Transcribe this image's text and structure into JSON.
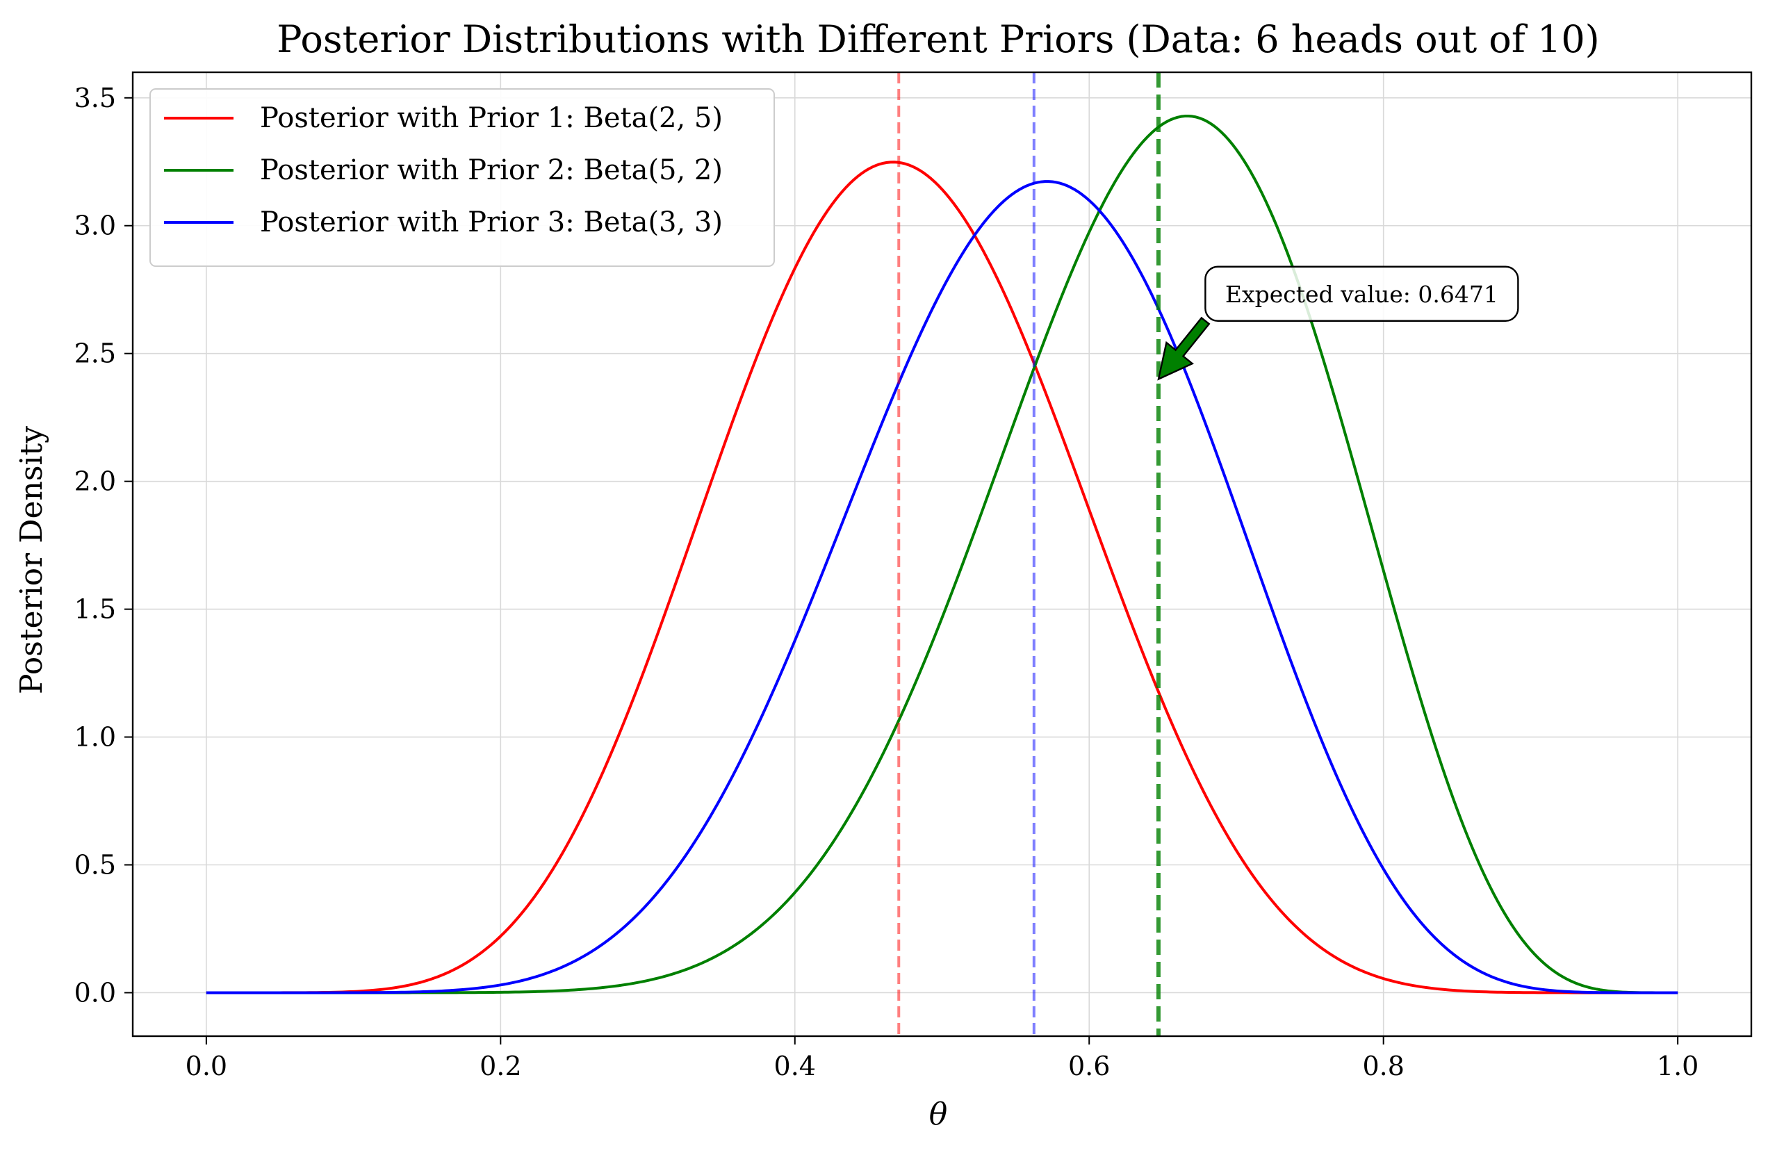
{
  "chart_data": {
    "type": "line",
    "title": "Posterior Distributions with Different Priors (Data: 6 heads out of 10)",
    "xlabel": "θ",
    "ylabel": "Posterior Density",
    "xlim": [
      -0.05,
      1.05
    ],
    "ylim": [
      -0.17,
      3.6
    ],
    "xticks": [
      "0.0",
      "0.2",
      "0.4",
      "0.6",
      "0.8",
      "1.0"
    ],
    "yticks": [
      "0.0",
      "0.5",
      "1.0",
      "1.5",
      "2.0",
      "2.5",
      "3.0",
      "3.5"
    ],
    "grid": true,
    "legend_position": "top-left",
    "series": [
      {
        "name": "Posterior with Prior 1: Beta(2, 5)",
        "color": "#ff0000",
        "alpha": 8,
        "beta": 9
      },
      {
        "name": "Posterior with Prior 2: Beta(5, 2)",
        "color": "#008000",
        "alpha": 11,
        "beta": 6
      },
      {
        "name": "Posterior with Prior 3: Beta(3, 3)",
        "color": "#0000ff",
        "alpha": 9,
        "beta": 7
      }
    ],
    "vertical_lines": [
      {
        "x": 0.4706,
        "color": "#ff0000",
        "style": "dashed"
      },
      {
        "x": 0.5625,
        "color": "#0000ff",
        "style": "dashed"
      },
      {
        "x": 0.6471,
        "color": "#008000",
        "style": "dashed"
      }
    ],
    "annotation": {
      "text": "Expected value: 0.6471",
      "x": 0.6471,
      "y": 2.4,
      "text_x": 0.695,
      "text_y": 2.72,
      "arrow_color": "#008000"
    }
  }
}
